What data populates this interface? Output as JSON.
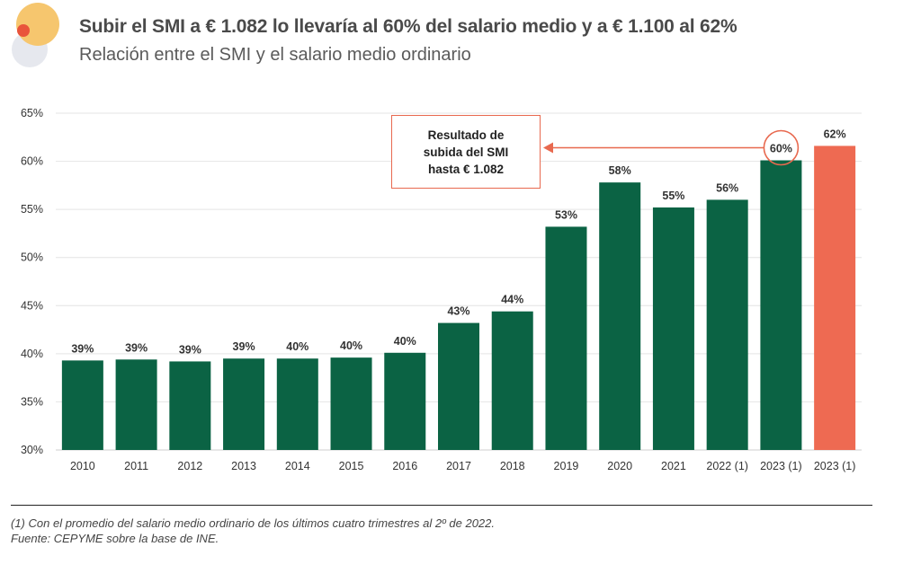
{
  "header": {
    "title": "Subir el SMI a € 1.082 lo llevaría al 60% del salario medio y a € 1.100 al 62%",
    "subtitle": "Relación entre el SMI y el salario medio ordinario"
  },
  "colors": {
    "bar": "#0b6344",
    "highlight": "#ee6a52",
    "accent": "#e8694f",
    "logo_orange": "#f6c66e",
    "logo_grey": "#e6e8ee",
    "logo_red": "#e9543b"
  },
  "chart_data": {
    "type": "bar",
    "categories": [
      "2010",
      "2011",
      "2012",
      "2013",
      "2014",
      "2015",
      "2016",
      "2017",
      "2018",
      "2019",
      "2020",
      "2021",
      "2022 (1)",
      "2023 (1)",
      "2023 (1)"
    ],
    "values": [
      39.3,
      39.4,
      39.2,
      39.5,
      39.5,
      39.6,
      40.1,
      43.2,
      44.4,
      53.2,
      57.8,
      55.2,
      56.0,
      60.1,
      61.6
    ],
    "data_labels": [
      "39%",
      "39%",
      "39%",
      "39%",
      "40%",
      "40%",
      "40%",
      "43%",
      "44%",
      "53%",
      "58%",
      "55%",
      "56%",
      "60%",
      "62%"
    ],
    "highlight_index": 14,
    "circled_index": 13,
    "ylim": [
      30,
      65
    ],
    "yticks": [
      30,
      35,
      40,
      45,
      50,
      55,
      60,
      65
    ],
    "ytick_labels": [
      "30%",
      "35%",
      "40%",
      "45%",
      "50%",
      "55%",
      "60%",
      "65%"
    ],
    "grid": true,
    "title": "",
    "xlabel": "",
    "ylabel": ""
  },
  "callout": {
    "text": "Resultado de\nsubida del SMI\nhasta € 1.082"
  },
  "notes": {
    "footnote": "(1) Con el promedio del salario medio ordinario de los últimos cuatro trimestres al 2º de 2022.",
    "source": "Fuente: CEPYME sobre la base de INE."
  }
}
